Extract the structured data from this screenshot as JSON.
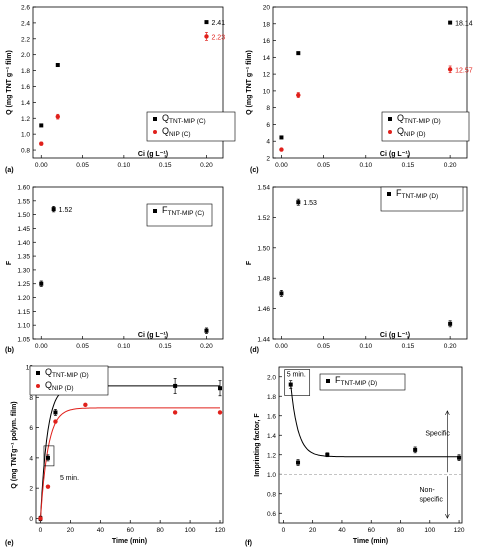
{
  "chart_data": [
    {
      "panel_label": "(a)",
      "type": "scatter",
      "ylabel": "Q (mg TNT g⁻¹ film)",
      "xlabel": "Ci (g L⁻¹)",
      "xlim": [
        -0.01,
        0.22
      ],
      "ylim": [
        0.7,
        2.6
      ],
      "xticks": [
        "0.00",
        "0.05",
        "0.10",
        "0.15",
        "0.20"
      ],
      "yticks": [
        "0.8",
        "1.0",
        "1.2",
        "1.4",
        "1.6",
        "1.8",
        "2.0",
        "2.2",
        "2.4",
        "2.6"
      ],
      "series": [
        {
          "name": "QTNT-MIP (C)",
          "color": "#000000",
          "marker": "square",
          "x": [
            0.0,
            0.02,
            0.2
          ],
          "y": [
            1.11,
            1.87,
            2.41
          ]
        },
        {
          "name": "QNIP (C)",
          "color": "#e0201b",
          "marker": "circle",
          "x": [
            0.0,
            0.02,
            0.2
          ],
          "y": [
            0.88,
            1.22,
            2.23
          ],
          "err": [
            0.02,
            0.03,
            0.05
          ]
        }
      ],
      "annotations": [
        {
          "text": "2.41",
          "x": 0.2,
          "y": 2.41,
          "color": "#000000"
        },
        {
          "text": "2.23",
          "x": 0.2,
          "y": 2.23,
          "color": "#e0201b"
        }
      ]
    },
    {
      "panel_label": "(c)",
      "type": "scatter",
      "ylabel": "Q (mg TNT g⁻¹ film)",
      "xlabel": "Ci (g L⁻¹)",
      "xlim": [
        -0.01,
        0.22
      ],
      "ylim": [
        2,
        20
      ],
      "xticks": [
        "0.00",
        "0.05",
        "0.10",
        "0.15",
        "0.20"
      ],
      "yticks": [
        "2",
        "4",
        "6",
        "8",
        "10",
        "12",
        "14",
        "16",
        "18",
        "20"
      ],
      "series": [
        {
          "name": "QTNT-MIP (D)",
          "color": "#000000",
          "marker": "square",
          "x": [
            0.0,
            0.02,
            0.2
          ],
          "y": [
            4.45,
            14.5,
            18.14
          ]
        },
        {
          "name": "QNIP (D)",
          "color": "#e0201b",
          "marker": "circle",
          "x": [
            0.0,
            0.02,
            0.2
          ],
          "y": [
            3.0,
            9.5,
            12.57
          ],
          "err": [
            0.15,
            0.3,
            0.4
          ]
        }
      ],
      "annotations": [
        {
          "text": "18.14",
          "x": 0.2,
          "y": 18.14,
          "color": "#000000"
        },
        {
          "text": "12.57",
          "x": 0.2,
          "y": 12.57,
          "color": "#e0201b"
        }
      ]
    },
    {
      "panel_label": "(b)",
      "type": "scatter",
      "ylabel": "F",
      "xlabel": "Ci (g L⁻¹)",
      "xlim": [
        -0.01,
        0.22
      ],
      "ylim": [
        1.05,
        1.6
      ],
      "xticks": [
        "0.00",
        "0.05",
        "0.10",
        "0.15",
        "0.20"
      ],
      "yticks": [
        "1.05",
        "1.10",
        "1.15",
        "1.20",
        "1.25",
        "1.30",
        "1.35",
        "1.40",
        "1.45",
        "1.50",
        "1.55",
        "1.60"
      ],
      "series": [
        {
          "name": "FTNT-MIP (C)",
          "color": "#000000",
          "marker": "square",
          "x": [
            0.0,
            0.015,
            0.2
          ],
          "y": [
            1.25,
            1.52,
            1.08
          ],
          "err": [
            0.01,
            0.01,
            0.01
          ]
        }
      ],
      "annotations": [
        {
          "text": "1.52",
          "x": 0.015,
          "y": 1.52,
          "color": "#000000"
        }
      ]
    },
    {
      "panel_label": "(d)",
      "type": "scatter",
      "ylabel": "F",
      "xlabel": "Ci (g L⁻¹)",
      "xlim": [
        -0.01,
        0.22
      ],
      "ylim": [
        1.44,
        1.54
      ],
      "xticks": [
        "0.00",
        "0.05",
        "0.10",
        "0.15",
        "0.20"
      ],
      "yticks": [
        "1.44",
        "1.46",
        "1.48",
        "1.50",
        "1.52",
        "1.54"
      ],
      "series": [
        {
          "name": "FTNT-MIP (D)",
          "color": "#000000",
          "marker": "square",
          "x": [
            0.0,
            0.02,
            0.2
          ],
          "y": [
            1.47,
            1.53,
            1.45
          ],
          "err": [
            0.002,
            0.002,
            0.002
          ]
        }
      ],
      "annotations": [
        {
          "text": "1.53",
          "x": 0.02,
          "y": 1.53,
          "color": "#000000"
        }
      ]
    },
    {
      "panel_label": "(e)",
      "type": "line",
      "ylabel": "Q (mg TNTg⁻¹ polym. film)",
      "xlabel": "Time (min)",
      "xlim": [
        -3,
        122
      ],
      "ylim": [
        -0.3,
        10
      ],
      "xticks": [
        "0",
        "20",
        "40",
        "60",
        "80",
        "100",
        "120"
      ],
      "yticks": [
        "0",
        "2",
        "4",
        "6",
        "8",
        "10"
      ],
      "series": [
        {
          "name": "QTNT-MIP (D)",
          "color": "#000000",
          "marker": "square",
          "x": [
            0,
            5,
            10,
            30,
            90,
            120
          ],
          "y": [
            0.0,
            4.0,
            7.0,
            9.0,
            8.75,
            8.6
          ],
          "err": [
            0.15,
            0.2,
            0.2,
            0.25,
            0.5,
            0.5
          ],
          "fit_plateau": 8.75,
          "fit_k": 0.22
        },
        {
          "name": "QNIP (D)",
          "color": "#e0201b",
          "marker": "circle",
          "x": [
            0,
            5,
            10,
            30,
            90,
            120
          ],
          "y": [
            0.0,
            2.1,
            6.4,
            7.5,
            7.0,
            7.0
          ],
          "fit_plateau": 7.3,
          "fit_k": 0.2
        }
      ],
      "annotations": [
        {
          "text": "5 min.",
          "x": 5,
          "y": 4.0,
          "color": "#000000"
        }
      ]
    },
    {
      "panel_label": "(f)",
      "type": "line",
      "ylabel": "Imprinting factor, F",
      "xlabel": "Time (min)",
      "xlim": [
        -3,
        122
      ],
      "ylim": [
        0.5,
        2.1
      ],
      "xticks": [
        "0",
        "20",
        "40",
        "60",
        "80",
        "100",
        "120"
      ],
      "yticks": [
        "0.6",
        "0.8",
        "1.0",
        "1.2",
        "1.4",
        "1.6",
        "1.8",
        "2.0"
      ],
      "series": [
        {
          "name": "FTNT-MIP (D)",
          "color": "#000000",
          "marker": "square",
          "x": [
            5,
            10,
            30,
            90,
            120
          ],
          "y": [
            1.92,
            1.12,
            1.2,
            1.25,
            1.17
          ],
          "err": [
            0.04,
            0.03,
            0.02,
            0.03,
            0.03
          ],
          "fit_plateau": 1.18,
          "fit_k": 0.2
        }
      ],
      "reference_line": 1.0,
      "annotations": [
        {
          "text": "5 min.",
          "x": 5,
          "y": 1.92,
          "color": "#000000"
        },
        {
          "text": "Specific",
          "x": 112,
          "y": 1.4,
          "color": "#000000"
        },
        {
          "text": "Non-",
          "x": 108,
          "y": 0.82,
          "color": "#000000"
        },
        {
          "text": "specific",
          "x": 108,
          "y": 0.72,
          "color": "#000000"
        }
      ]
    }
  ]
}
